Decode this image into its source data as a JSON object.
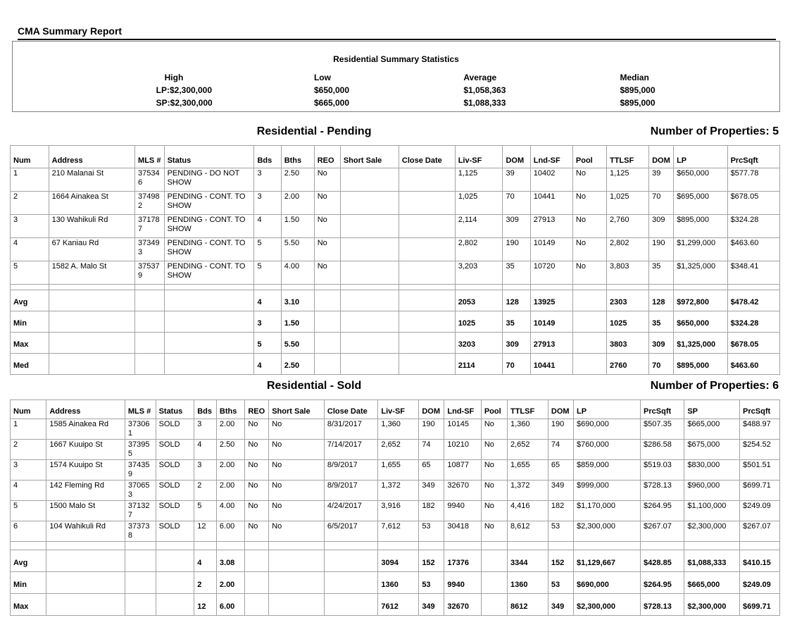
{
  "page": {
    "title": "CMA Summary Report"
  },
  "summary": {
    "title": "Residential Summary Statistics",
    "headers": [
      "High",
      "Low",
      "Average",
      "Median"
    ],
    "lp_row": [
      "LP:$2,300,000",
      "$650,000",
      "$1,058,363",
      "$895,000"
    ],
    "sp_row": [
      "SP:$2,300,000",
      "$665,000",
      "$1,088,333",
      "$895,000"
    ]
  },
  "pending": {
    "title": "Residential - Pending",
    "count_label": "Number of Properties: 5",
    "headers": [
      "Num",
      "Address",
      "MLS #",
      "Status",
      "Bds",
      "Bths",
      "REO",
      "Short Sale",
      "Close Date",
      "Liv-SF",
      "DOM",
      "Lnd-SF",
      "Pool",
      "TTLSF",
      "DOM",
      "LP",
      "PrcSqft"
    ],
    "rows": [
      {
        "cls": "data-row",
        "cells": [
          "1",
          "210 Malanai St",
          "375346",
          "PENDING - DO NOT SHOW",
          "3",
          "2.50",
          "No",
          "",
          "",
          "1,125",
          "39",
          "10402",
          "No",
          "1,125",
          "39",
          "$650,000",
          "$577.78"
        ]
      },
      {
        "cls": "data-row",
        "cells": [
          "2",
          "1664 Ainakea St",
          "374982",
          "PENDING - CONT. TO SHOW",
          "3",
          "2.00",
          "No",
          "",
          "",
          "1,025",
          "70",
          "10441",
          "No",
          "1,025",
          "70",
          "$695,000",
          "$678.05"
        ]
      },
      {
        "cls": "data-row",
        "cells": [
          "3",
          "130 Wahikuli Rd",
          "371787",
          "PENDING - CONT. TO SHOW",
          "4",
          "1.50",
          "No",
          "",
          "",
          "2,114",
          "309",
          "27913",
          "No",
          "2,760",
          "309",
          "$895,000",
          "$324.28"
        ]
      },
      {
        "cls": "data-row",
        "cells": [
          "4",
          "67 Kaniau Rd",
          "373493",
          "PENDING - CONT. TO SHOW",
          "5",
          "5.50",
          "No",
          "",
          "",
          "2,802",
          "190",
          "10149",
          "No",
          "2,802",
          "190",
          "$1,299,000",
          "$463.60"
        ]
      },
      {
        "cls": "data-row",
        "cells": [
          "5",
          "1582 A. Malo St",
          "375379",
          "PENDING - CONT. TO SHOW",
          "5",
          "4.00",
          "No",
          "",
          "",
          "3,203",
          "35",
          "10720",
          "No",
          "3,803",
          "35",
          "$1,325,000",
          "$348.41"
        ]
      },
      {
        "cls": "spacer-row",
        "cells": [
          "",
          "",
          "",
          "",
          "",
          "",
          "",
          "",
          "",
          "",
          "",
          "",
          "",
          "",
          "",
          "",
          ""
        ]
      },
      {
        "cls": "stat-row",
        "cells": [
          "Avg",
          "",
          "",
          "",
          "4",
          "3.10",
          "",
          "",
          "",
          "2053",
          "128",
          "13925",
          "",
          "2303",
          "128",
          "$972,800",
          "$478.42"
        ]
      },
      {
        "cls": "stat-row",
        "cells": [
          "Min",
          "",
          "",
          "",
          "3",
          "1.50",
          "",
          "",
          "",
          "1025",
          "35",
          "10149",
          "",
          "1025",
          "35",
          "$650,000",
          "$324.28"
        ]
      },
      {
        "cls": "stat-row",
        "cells": [
          "Max",
          "",
          "",
          "",
          "5",
          "5.50",
          "",
          "",
          "",
          "3203",
          "309",
          "27913",
          "",
          "3803",
          "309",
          "$1,325,000",
          "$678.05"
        ]
      },
      {
        "cls": "stat-row",
        "cells": [
          "Med",
          "",
          "",
          "",
          "4",
          "2.50",
          "",
          "",
          "",
          "2114",
          "70",
          "10441",
          "",
          "2760",
          "70",
          "$895,000",
          "$463.60"
        ]
      }
    ]
  },
  "sold": {
    "title": "Residential - Sold",
    "count_label": "Number of Properties: 6",
    "headers": [
      "Num",
      "Address",
      "MLS #",
      "Status",
      "Bds",
      "Bths",
      "REO",
      "Short Sale",
      "Close Date",
      "Liv-SF",
      "DOM",
      "Lnd-SF",
      "Pool",
      "TTLSF",
      "DOM",
      "LP",
      "PrcSqft",
      "SP",
      "PrcSqft"
    ],
    "rows": [
      {
        "cls": "data-row",
        "cells": [
          "1",
          "1585 Ainakea Rd",
          "373061",
          "SOLD",
          "3",
          "2.00",
          "No",
          "No",
          "8/31/2017",
          "1,360",
          "190",
          "10145",
          "No",
          "1,360",
          "190",
          "$690,000",
          "$507.35",
          "$665,000",
          "$488.97"
        ]
      },
      {
        "cls": "data-row",
        "cells": [
          "2",
          "1667 Kuuipo St",
          "373955",
          "SOLD",
          "4",
          "2.50",
          "No",
          "No",
          "7/14/2017",
          "2,652",
          "74",
          "10210",
          "No",
          "2,652",
          "74",
          "$760,000",
          "$286.58",
          "$675,000",
          "$254.52"
        ]
      },
      {
        "cls": "data-row",
        "cells": [
          "3",
          "1574 Kuuipo St",
          "374359",
          "SOLD",
          "3",
          "2.00",
          "No",
          "No",
          "8/9/2017",
          "1,655",
          "65",
          "10877",
          "No",
          "1,655",
          "65",
          "$859,000",
          "$519.03",
          "$830,000",
          "$501.51"
        ]
      },
      {
        "cls": "data-row",
        "cells": [
          "4",
          "142 Fleming Rd",
          "370653",
          "SOLD",
          "2",
          "2.00",
          "No",
          "No",
          "8/9/2017",
          "1,372",
          "349",
          "32670",
          "No",
          "1,372",
          "349",
          "$999,000",
          "$728.13",
          "$960,000",
          "$699.71"
        ]
      },
      {
        "cls": "data-row",
        "cells": [
          "5",
          "1500 Malo St",
          "371327",
          "SOLD",
          "5",
          "4.00",
          "No",
          "No",
          "4/24/2017",
          "3,916",
          "182",
          "9940",
          "No",
          "4,416",
          "182",
          "$1,170,000",
          "$264.95",
          "$1,100,000",
          "$249.09"
        ]
      },
      {
        "cls": "data-row",
        "cells": [
          "6",
          "104 Wahikuli Rd",
          "373738",
          "SOLD",
          "12",
          "6.00",
          "No",
          "No",
          "6/5/2017",
          "7,612",
          "53",
          "30418",
          "No",
          "8,612",
          "53",
          "$2,300,000",
          "$267.07",
          "$2,300,000",
          "$267.07"
        ]
      },
      {
        "cls": "spacer-row",
        "cells": [
          "",
          "",
          "",
          "",
          "",
          "",
          "",
          "",
          "",
          "",
          "",
          "",
          "",
          "",
          "",
          "",
          "",
          "",
          ""
        ]
      },
      {
        "cls": "stat-row",
        "cells": [
          "Avg",
          "",
          "",
          "",
          "4",
          "3.08",
          "",
          "",
          "",
          "3094",
          "152",
          "17376",
          "",
          "3344",
          "152",
          "$1,129,667",
          "$428.85",
          "$1,088,333",
          "$410.15"
        ]
      },
      {
        "cls": "stat-row",
        "cells": [
          "Min",
          "",
          "",
          "",
          "2",
          "2.00",
          "",
          "",
          "",
          "1360",
          "53",
          "9940",
          "",
          "1360",
          "53",
          "$690,000",
          "$264.95",
          "$665,000",
          "$249.09"
        ]
      },
      {
        "cls": "stat-row",
        "cells": [
          "Max",
          "",
          "",
          "",
          "12",
          "6.00",
          "",
          "",
          "",
          "7612",
          "349",
          "32670",
          "",
          "8612",
          "349",
          "$2,300,000",
          "$728.13",
          "$2,300,000",
          "$699.71"
        ]
      }
    ]
  }
}
